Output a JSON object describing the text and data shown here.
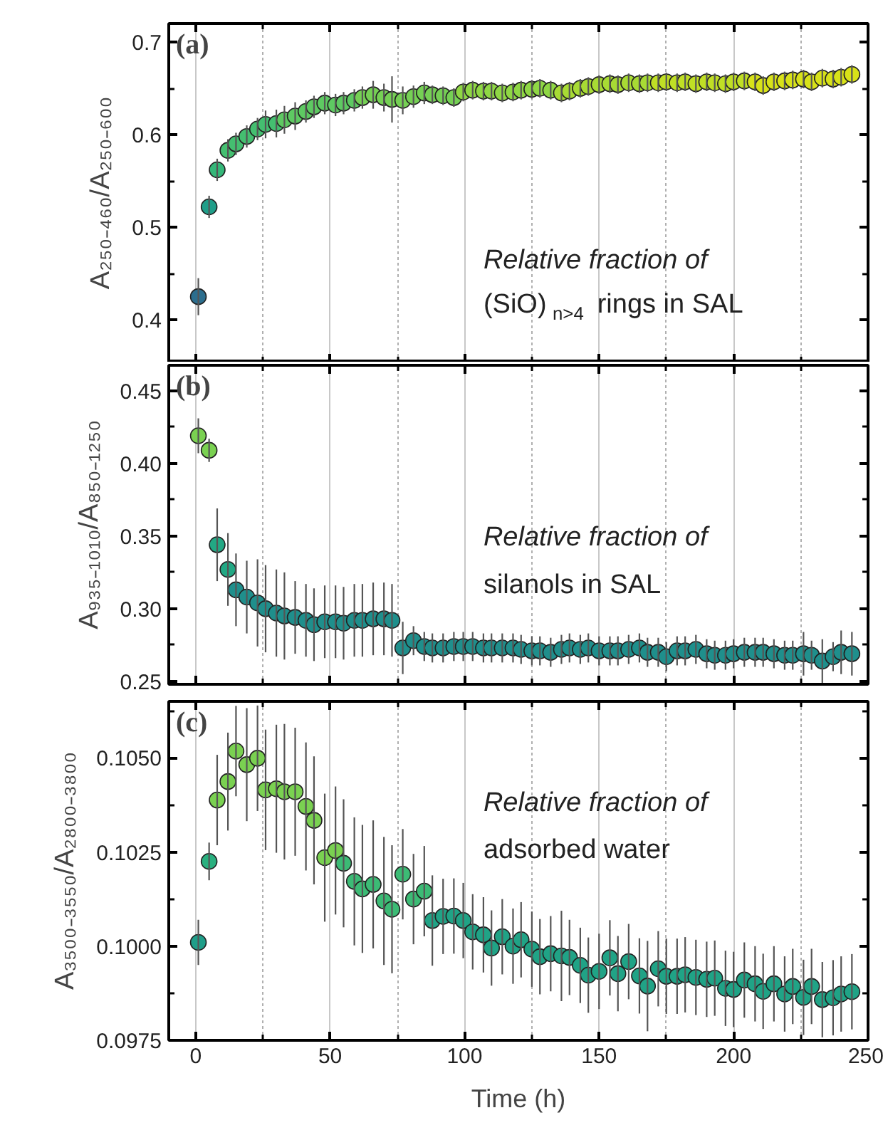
{
  "chart_data": [
    {
      "type": "scatter",
      "title": "(a)",
      "ylabel": "A₂₅₀₋₄₆₀/A₂₅₀₋₆₀₀",
      "marker": "circle",
      "grid": "x",
      "tick_labels": "y",
      "annotations": [
        "Relative fraction of",
        "(SiO)$_{n>4}$ rings in SAL"
      ],
      "xlim": [
        -10,
        250
      ],
      "xticks": [
        0,
        {
          "value": 25,
          "label": null
        },
        50,
        {
          "value": 75,
          "label": null
        },
        100,
        {
          "value": 125,
          "label": null
        },
        150,
        {
          "value": 175,
          "label": null
        },
        200,
        {
          "value": 225,
          "label": null
        },
        250
      ],
      "ylim": [
        0.354,
        0.72
      ],
      "yticks": [
        0.4,
        {
          "value": 0.45,
          "label": null
        },
        0.5,
        {
          "value": 0.55,
          "label": null
        },
        0.6,
        {
          "value": 0.65,
          "label": null
        },
        0.7
      ],
      "x": [
        1,
        5,
        8,
        12,
        15,
        19,
        23,
        26,
        30,
        33,
        37,
        41,
        44,
        48,
        52,
        55,
        59,
        62,
        66,
        70,
        73,
        77,
        81,
        85,
        88,
        92,
        96,
        99.5,
        103,
        107,
        110,
        114,
        118,
        121,
        125,
        128,
        132,
        136,
        139,
        143,
        146,
        150,
        154,
        157,
        161,
        165,
        168,
        172,
        175,
        179,
        182,
        186,
        190,
        193,
        197,
        200,
        204,
        208,
        211,
        215,
        219,
        222,
        226,
        229,
        233,
        237,
        240,
        244
      ],
      "values": [
        0.425,
        0.522,
        0.562,
        0.583,
        0.59,
        0.598,
        0.606,
        0.611,
        0.612,
        0.616,
        0.62,
        0.625,
        0.63,
        0.634,
        0.632,
        0.634,
        0.637,
        0.64,
        0.643,
        0.64,
        0.638,
        0.637,
        0.641,
        0.645,
        0.643,
        0.642,
        0.64,
        0.646,
        0.648,
        0.647,
        0.647,
        0.645,
        0.646,
        0.648,
        0.649,
        0.65,
        0.648,
        0.645,
        0.647,
        0.65,
        0.652,
        0.654,
        0.655,
        0.654,
        0.656,
        0.655,
        0.656,
        0.656,
        0.657,
        0.656,
        0.657,
        0.655,
        0.657,
        0.656,
        0.655,
        0.657,
        0.658,
        0.657,
        0.653,
        0.657,
        0.658,
        0.659,
        0.66,
        0.657,
        0.661,
        0.66,
        0.662,
        0.665
      ],
      "errors": [
        0.02,
        0.012,
        0.012,
        0.012,
        0.012,
        0.012,
        0.012,
        0.015,
        0.015,
        0.015,
        0.015,
        0.012,
        0.012,
        0.012,
        0.012,
        0.012,
        0.012,
        0.012,
        0.015,
        0.015,
        0.025,
        0.015,
        0.012,
        0.012,
        0.01,
        0.01,
        0.01,
        0.01,
        0.01,
        0.01,
        0.01,
        0.01,
        0.01,
        0.01,
        0.01,
        0.01,
        0.01,
        0.01,
        0.01,
        0.01,
        0.01,
        0.01,
        0.01,
        0.01,
        0.01,
        0.01,
        0.01,
        0.01,
        0.01,
        0.01,
        0.01,
        0.01,
        0.01,
        0.01,
        0.01,
        0.01,
        0.01,
        0.01,
        0.01,
        0.01,
        0.01,
        0.01,
        0.01,
        0.01,
        0.01,
        0.01,
        0.01,
        0.01
      ],
      "colors": [
        "#2c6e8e",
        "#1f9e89",
        "#35b779",
        "#44bf70",
        "#44bf70",
        "#44bf70",
        "#44bf70",
        "#44bf70",
        "#44bf70",
        "#5ec962",
        "#5ec962",
        "#5ec962",
        "#5ec962",
        "#5ec962",
        "#5ec962",
        "#5ec962",
        "#5ec962",
        "#75d054",
        "#75d054",
        "#75d054",
        "#75d054",
        "#75d054",
        "#75d054",
        "#75d054",
        "#75d054",
        "#75d054",
        "#75d054",
        "#8fd744",
        "#8fd744",
        "#8fd744",
        "#8fd744",
        "#8fd744",
        "#8fd744",
        "#8fd744",
        "#8fd744",
        "#8fd744",
        "#8fd744",
        "#a8db34",
        "#a8db34",
        "#a8db34",
        "#a8db34",
        "#a8db34",
        "#a8db34",
        "#a8db34",
        "#a8db34",
        "#a8db34",
        "#a8db34",
        "#c0df25",
        "#c0df25",
        "#c0df25",
        "#c0df25",
        "#c0df25",
        "#c0df25",
        "#c0df25",
        "#c0df25",
        "#c0df25",
        "#c0df25",
        "#d8e219",
        "#d8e219",
        "#d8e219",
        "#d8e219",
        "#d8e219",
        "#d8e219",
        "#d8e219",
        "#d8e219",
        "#d8e219",
        "#d8e219",
        "#d8e219"
      ]
    },
    {
      "type": "scatter",
      "title": "(b)",
      "ylabel": "A₉₃₅₋₁₀₁₀/A₈₅₀₋₁₂₅₀",
      "marker": "circle",
      "grid": "x",
      "tick_labels": "y",
      "annotations": [
        "Relative fraction of",
        "silanols in SAL"
      ],
      "xlim": [
        -10,
        250
      ],
      "xticks": [
        0,
        {
          "value": 25,
          "label": null
        },
        50,
        {
          "value": 75,
          "label": null
        },
        100,
        {
          "value": 125,
          "label": null
        },
        150,
        {
          "value": 175,
          "label": null
        },
        200,
        {
          "value": 225,
          "label": null
        },
        250
      ],
      "ylim": [
        0.248,
        0.4675
      ],
      "yticks": [
        {
          "value": 0.25,
          "label": "0.25"
        },
        {
          "value": 0.275,
          "label": null
        },
        {
          "value": 0.3,
          "label": "0.30"
        },
        {
          "value": 0.325,
          "label": null
        },
        {
          "value": 0.35,
          "label": "0.35"
        },
        {
          "value": 0.375,
          "label": null
        },
        {
          "value": 0.4,
          "label": "0.40"
        },
        {
          "value": 0.425,
          "label": null
        },
        {
          "value": 0.45,
          "label": "0.45"
        }
      ],
      "x": [
        1,
        5,
        8,
        12,
        15,
        19,
        23,
        26,
        30,
        33,
        37,
        41,
        44,
        48,
        52,
        55,
        59,
        62,
        66,
        70,
        73,
        77,
        81,
        85,
        88,
        92,
        96,
        99.5,
        103,
        107,
        110,
        114,
        118,
        121,
        125,
        128,
        132,
        136,
        139,
        143,
        146,
        150,
        154,
        157,
        161,
        165,
        168,
        172,
        175,
        179,
        182,
        186,
        190,
        193,
        197,
        200,
        204,
        208,
        211,
        215,
        219,
        222,
        226,
        229,
        233,
        237,
        240,
        244
      ],
      "values": [
        0.419,
        0.409,
        0.344,
        0.327,
        0.313,
        0.308,
        0.304,
        0.3,
        0.297,
        0.295,
        0.294,
        0.292,
        0.289,
        0.291,
        0.291,
        0.29,
        0.292,
        0.292,
        0.293,
        0.293,
        0.292,
        0.273,
        0.278,
        0.274,
        0.273,
        0.273,
        0.274,
        0.274,
        0.274,
        0.273,
        0.273,
        0.273,
        0.273,
        0.272,
        0.271,
        0.271,
        0.27,
        0.272,
        0.273,
        0.272,
        0.273,
        0.271,
        0.271,
        0.271,
        0.272,
        0.273,
        0.27,
        0.27,
        0.267,
        0.271,
        0.271,
        0.272,
        0.269,
        0.268,
        0.268,
        0.269,
        0.27,
        0.27,
        0.27,
        0.269,
        0.268,
        0.268,
        0.269,
        0.268,
        0.264,
        0.267,
        0.27,
        0.269
      ],
      "errors": [
        0.012,
        0.008,
        0.025,
        0.025,
        0.025,
        0.025,
        0.03,
        0.03,
        0.03,
        0.03,
        0.025,
        0.025,
        0.025,
        0.025,
        0.025,
        0.025,
        0.025,
        0.025,
        0.025,
        0.025,
        0.025,
        0.018,
        0.01,
        0.01,
        0.01,
        0.01,
        0.01,
        0.01,
        0.01,
        0.01,
        0.01,
        0.01,
        0.01,
        0.01,
        0.01,
        0.01,
        0.01,
        0.01,
        0.01,
        0.01,
        0.01,
        0.01,
        0.01,
        0.01,
        0.01,
        0.01,
        0.01,
        0.01,
        0.01,
        0.01,
        0.01,
        0.01,
        0.01,
        0.01,
        0.01,
        0.01,
        0.01,
        0.01,
        0.01,
        0.01,
        0.01,
        0.01,
        0.015,
        0.01,
        0.015,
        0.01,
        0.015,
        0.015
      ],
      "colors": [
        "#7ad151",
        "#7ad151",
        "#22a884",
        "#22a884",
        "#1f8f8c",
        "#1f8f8c",
        "#1f8f8c",
        "#1f8f8c",
        "#1f8f8c",
        "#1f8f8c",
        "#1f8f8c",
        "#1f8f8c",
        "#1f8f8c",
        "#1f8f8c",
        "#1f8f8c",
        "#1f8f8c",
        "#1f8f8c",
        "#1f8f8c",
        "#1f8f8c",
        "#1f8f8c",
        "#1f8f8c",
        "#1f8f8c",
        "#1f8f8c",
        "#1f8f8c",
        "#1f8f8c",
        "#1f8f8c",
        "#1f8f8c",
        "#1f8f8c",
        "#1f8f8c",
        "#1f8f8c",
        "#1f8f8c",
        "#1f8f8c",
        "#1f8f8c",
        "#1f8f8c",
        "#1f8f8c",
        "#1f8f8c",
        "#1f8f8c",
        "#1f8f8c",
        "#1f8f8c",
        "#1f8f8c",
        "#1f8f8c",
        "#1f8f8c",
        "#1f8f8c",
        "#1f8f8c",
        "#1f8f8c",
        "#1f8f8c",
        "#1f8f8c",
        "#1f8f8c",
        "#1f8f8c",
        "#1f8f8c",
        "#1f8f8c",
        "#1f8f8c",
        "#1f8f8c",
        "#1f8f8c",
        "#1f8f8c",
        "#1f8f8c",
        "#1f8f8c",
        "#1f8f8c",
        "#1f8f8c",
        "#1f8f8c",
        "#1f8f8c",
        "#1f8f8c",
        "#1f8f8c",
        "#1f8f8c",
        "#1f8f8c",
        "#1f8f8c",
        "#1f8f8c",
        "#1f8f8c"
      ]
    },
    {
      "type": "scatter",
      "title": "(c)",
      "ylabel": "A₃₅₀₀₋₃₅₅₀/A₂₈₀₀₋₃₈₀₀",
      "xlabel": "Time (h)",
      "marker": "circle",
      "grid": "x",
      "annotations": [
        "Relative fraction of",
        "adsorbed water"
      ],
      "xlim": [
        -10,
        250
      ],
      "xticks": [
        0,
        {
          "value": 25,
          "label": null
        },
        50,
        {
          "value": 75,
          "label": null
        },
        100,
        {
          "value": 125,
          "label": null
        },
        150,
        {
          "value": 175,
          "label": null
        },
        200,
        {
          "value": 225,
          "label": null
        },
        250
      ],
      "ylim": [
        0.0975,
        0.1065
      ],
      "yticks": [
        {
          "value": 0.0975,
          "label": "0.0975"
        },
        {
          "value": 0.09875,
          "label": null
        },
        {
          "value": 0.1,
          "label": "0.1000"
        },
        {
          "value": 0.10125,
          "label": null
        },
        {
          "value": 0.1025,
          "label": "0.1025"
        },
        {
          "value": 0.10375,
          "label": null
        },
        {
          "value": 0.105,
          "label": "0.1050"
        },
        {
          "value": 0.10625,
          "label": null
        }
      ],
      "x": [
        1,
        5,
        8,
        12,
        15,
        19,
        23,
        26,
        30,
        33,
        37,
        41,
        44,
        48,
        52,
        55,
        59,
        62,
        66,
        70,
        73,
        77,
        81,
        85,
        88,
        92,
        96,
        99.5,
        103,
        107,
        110,
        114,
        118,
        121,
        125,
        128,
        132,
        136,
        139,
        143,
        146,
        150,
        154,
        157,
        161,
        165,
        168,
        172,
        175,
        179,
        182,
        186,
        190,
        193,
        197,
        200,
        204,
        208,
        211,
        215,
        219,
        222,
        226,
        229,
        233,
        237,
        240,
        244
      ],
      "values": [
        0.1001,
        0.10225,
        0.10388,
        0.10437,
        0.10518,
        0.10482,
        0.10499,
        0.10415,
        0.10418,
        0.1041,
        0.1041,
        0.10371,
        0.10334,
        0.10235,
        0.10254,
        0.1022,
        0.10172,
        0.10152,
        0.10164,
        0.1012,
        0.10098,
        0.10191,
        0.10125,
        0.10146,
        0.10068,
        0.10079,
        0.1008,
        0.10068,
        0.10038,
        0.1003,
        0.09995,
        0.10025,
        0.1,
        0.10017,
        0.09992,
        0.09972,
        0.0998,
        0.09974,
        0.0997,
        0.09949,
        0.09923,
        0.09933,
        0.09969,
        0.09927,
        0.09959,
        0.09921,
        0.09894,
        0.0994,
        0.0992,
        0.0992,
        0.09924,
        0.09917,
        0.09912,
        0.09915,
        0.09888,
        0.09885,
        0.0991,
        0.099,
        0.0988,
        0.099,
        0.09873,
        0.09893,
        0.09864,
        0.09893,
        0.09858,
        0.09863,
        0.09873,
        0.09879
      ],
      "errors": [
        0.0006,
        0.0005,
        0.0012,
        0.0013,
        0.0012,
        0.0015,
        0.0014,
        0.0016,
        0.0017,
        0.0018,
        0.0017,
        0.0017,
        0.0017,
        0.0017,
        0.0017,
        0.0017,
        0.0017,
        0.0017,
        0.0017,
        0.0017,
        0.0017,
        0.0012,
        0.0012,
        0.0012,
        0.0012,
        0.001,
        0.001,
        0.001,
        0.001,
        0.001,
        0.001,
        0.001,
        0.001,
        0.001,
        0.001,
        0.001,
        0.001,
        0.0012,
        0.001,
        0.001,
        0.001,
        0.001,
        0.001,
        0.001,
        0.001,
        0.001,
        0.0012,
        0.001,
        0.001,
        0.001,
        0.001,
        0.001,
        0.001,
        0.001,
        0.001,
        0.001,
        0.001,
        0.001,
        0.001,
        0.001,
        0.001,
        0.001,
        0.001,
        0.001,
        0.001,
        0.001,
        0.001,
        0.001
      ],
      "colors": [
        "#1f9e89",
        "#2ab07f",
        "#7ad151",
        "#7ad151",
        "#7ad151",
        "#7ad151",
        "#7ad151",
        "#7ad151",
        "#7ad151",
        "#7ad151",
        "#7ad151",
        "#7ad151",
        "#7ad151",
        "#7ad151",
        "#7ad151",
        "#3cbb75",
        "#3cbb75",
        "#3cbb75",
        "#3cbb75",
        "#3cbb75",
        "#3cbb75",
        "#3cbb75",
        "#3cbb75",
        "#3cbb75",
        "#20a386",
        "#20a386",
        "#20a386",
        "#20a386",
        "#20a386",
        "#20a386",
        "#20a386",
        "#20a386",
        "#20a386",
        "#20a386",
        "#20a386",
        "#20a386",
        "#20a386",
        "#20a386",
        "#20a386",
        "#20a386",
        "#20a386",
        "#20a386",
        "#20a386",
        "#20a386",
        "#20a386",
        "#20a386",
        "#20a386",
        "#20a386",
        "#20a386",
        "#20a386",
        "#20a386",
        "#20a386",
        "#20a386",
        "#20a386",
        "#20a386",
        "#20a386",
        "#20a386",
        "#20a386",
        "#20a386",
        "#20a386",
        "#20a386",
        "#20a386",
        "#20a386",
        "#20a386",
        "#20a386",
        "#20a386",
        "#20a386",
        "#20a386"
      ]
    }
  ]
}
